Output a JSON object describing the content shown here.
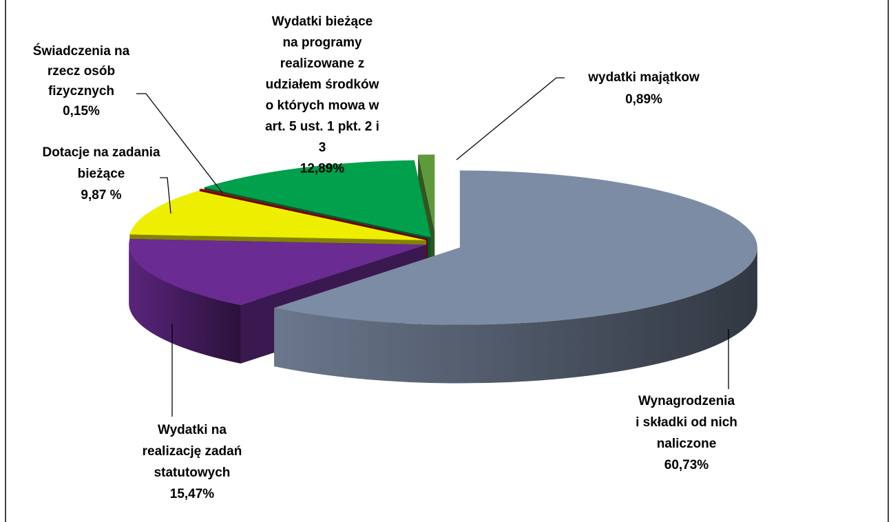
{
  "chart_data": {
    "type": "pie3d",
    "categories": [
      [
        "Wynagrodzenia",
        "i składki od nich",
        "naliczone"
      ],
      [
        "Wydatki na",
        "realizację zadań",
        "statutowych"
      ],
      [
        "Dotacje na zadania",
        "bieżące"
      ],
      [
        "Świadczenia na",
        "rzecz osób",
        "fizycznych"
      ],
      [
        "Wydatki bieżące",
        "na programy",
        "realizowane z",
        "udziałem środków",
        "o których  mowa w",
        "art. 5 ust. 1 pkt. 2 i",
        "3"
      ],
      [
        "wydatki majątkow"
      ]
    ],
    "values": [
      60.73,
      15.47,
      9.87,
      0.15,
      12.89,
      0.89
    ],
    "value_labels": [
      "60,73%",
      "15,47%",
      "9,87 %",
      "0,15%",
      "12,89%",
      "0,89%"
    ],
    "colors": [
      "#7d8ca5",
      "#6a2b92",
      "#eeee00",
      "#c00000",
      "#00a04c",
      "#5c9a3c"
    ]
  }
}
